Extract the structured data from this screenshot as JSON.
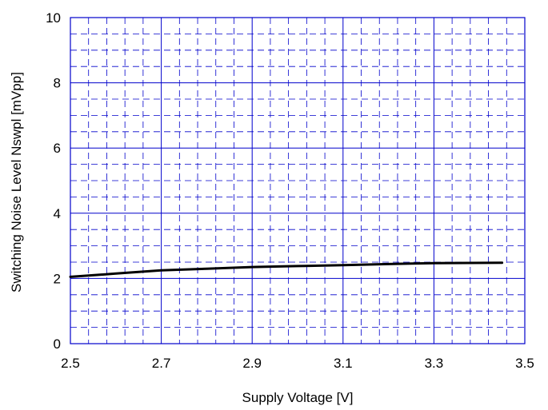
{
  "chart_data": {
    "type": "line",
    "title": "",
    "xlabel": "Supply Voltage [V]",
    "ylabel": "Switching Noise Level Nswpl [mVpp]",
    "xlim": [
      2.5,
      3.5
    ],
    "ylim": [
      0,
      10
    ],
    "x_ticks": [
      2.5,
      2.7,
      2.9,
      3.1,
      3.3,
      3.5
    ],
    "x_tick_labels": [
      "2.5",
      "2.7",
      "2.9",
      "3.1",
      "3.3",
      "3.5"
    ],
    "y_ticks": [
      0,
      2,
      4,
      6,
      8,
      10
    ],
    "y_tick_labels": [
      "0",
      "2",
      "4",
      "6",
      "8",
      "10"
    ],
    "grid": "major solid, minor dashed",
    "grid_color": "#0000cc",
    "line_color": "#000000",
    "series": [
      {
        "x": [
          2.5,
          2.6,
          2.7,
          2.8,
          2.9,
          3.0,
          3.1,
          3.2,
          3.3,
          3.45
        ],
        "values": [
          2.05,
          2.15,
          2.25,
          2.3,
          2.35,
          2.38,
          2.41,
          2.44,
          2.47,
          2.48
        ]
      }
    ]
  }
}
